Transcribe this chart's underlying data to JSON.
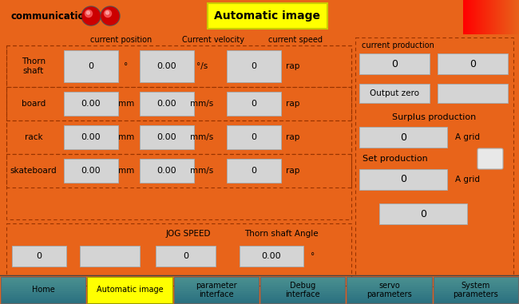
{
  "bg_color": "#E8641A",
  "title": "Automatic image",
  "communication_label": "communication",
  "header_labels": [
    "current position",
    "Current velocity",
    "current speed"
  ],
  "row_labels": [
    "Thorn\nshaft",
    "board",
    "rack",
    "skateboard"
  ],
  "row_pos_vals": [
    "0",
    "0.00",
    "0.00",
    "0.00"
  ],
  "row_pos_units": [
    "°",
    "mm",
    "mm",
    "mm"
  ],
  "row_vel_vals": [
    "0.00",
    "0.00",
    "0.00",
    "0.00"
  ],
  "row_vel_units": [
    "°/s",
    "mm/s",
    "mm/s",
    "mm/s"
  ],
  "row_spd_vals": [
    "0",
    "0",
    "0",
    "0"
  ],
  "row_spd_units": [
    "rap",
    "rap",
    "rap",
    "rap"
  ],
  "right_panel_title": "current production",
  "output_zero_label": "Output zero",
  "surplus_label": "Surplus production",
  "surplus_val": "0",
  "surplus_unit": "A grid",
  "set_label": "Set production",
  "set_val": "0",
  "set_unit": "A grid",
  "bottom_val": "0",
  "jog_label": "JOG SPEED",
  "thorn_angle_label": "Thorn shaft Angle",
  "angle_unit": "°",
  "bottom_buttons": [
    "Home",
    "Automatic image",
    "parameter\ninterface",
    "Debug\ninterface",
    "servo\nparameters",
    "System\nparameters"
  ],
  "btn_colors": [
    "#4a9090",
    "#ffff00",
    "#4a9090",
    "#4a9090",
    "#4a9090",
    "#4a9090"
  ],
  "input_box_color": "#d4d4d4",
  "input_box_edge": "#aaaaaa",
  "dashed_border_color": "#993300"
}
